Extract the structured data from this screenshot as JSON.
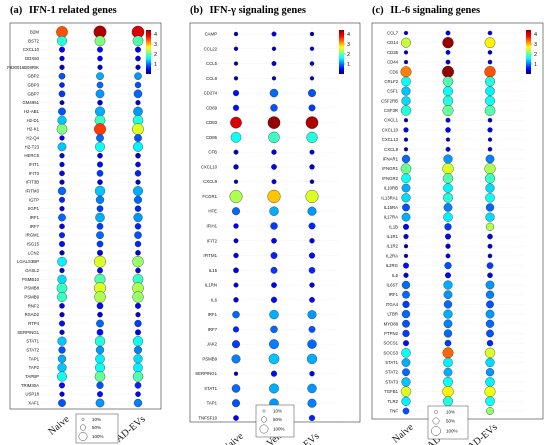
{
  "chart_data": [
    {
      "type": "scatter",
      "panel_label": "(a)",
      "title": "IFN-1 related genes",
      "x_categories": [
        "Naive",
        "AD-Veh",
        "AD-EVs"
      ],
      "colorbar_ticks": [
        "4",
        "3",
        "2",
        "1"
      ],
      "size_legend": [
        "10%",
        "50%",
        "100%"
      ],
      "genes": [
        "B2M",
        "BST2",
        "CXCL10",
        "DDX60",
        "F830016B08RIK",
        "GBP2",
        "GBP3",
        "GBP7",
        "GM4951",
        "H2-AB1",
        "H2-D1",
        "H2-K1",
        "H2-Q4",
        "H2-T23",
        "HERC6",
        "IFIT1",
        "IFIT3",
        "IFIT3B",
        "IFITM3",
        "IGTP",
        "IIGP1",
        "IRF1",
        "IRF7",
        "IRGM1",
        "ISG15",
        "LCN2",
        "LGALS3BP",
        "OASL2",
        "PSMB10",
        "PSMB8",
        "PSMB9",
        "RNF2",
        "RSAD2",
        "RTP4",
        "SERPING1",
        "STAT1",
        "STAT2",
        "TAP1",
        "TAP2",
        "TAPBP",
        "TRIM30A",
        "USP18",
        "XAF1"
      ],
      "size": [
        [
          0.8,
          1.0,
          0.95
        ],
        [
          0.55,
          0.65,
          0.65
        ],
        [
          0.15,
          0.15,
          0.15
        ],
        [
          0.1,
          0.12,
          0.12
        ],
        [
          0.1,
          0.1,
          0.1
        ],
        [
          0.2,
          0.3,
          0.28
        ],
        [
          0.12,
          0.2,
          0.18
        ],
        [
          0.2,
          0.4,
          0.38
        ],
        [
          0.08,
          0.12,
          0.1
        ],
        [
          0.3,
          0.55,
          0.5
        ],
        [
          0.45,
          0.65,
          0.62
        ],
        [
          0.65,
          0.85,
          0.82
        ],
        [
          0.1,
          0.3,
          0.3
        ],
        [
          0.4,
          0.55,
          0.55
        ],
        [
          0.1,
          0.12,
          0.12
        ],
        [
          0.1,
          0.15,
          0.12
        ],
        [
          0.12,
          0.2,
          0.18
        ],
        [
          0.1,
          0.12,
          0.1
        ],
        [
          0.35,
          0.6,
          0.55
        ],
        [
          0.15,
          0.35,
          0.32
        ],
        [
          0.1,
          0.2,
          0.18
        ],
        [
          0.3,
          0.5,
          0.45
        ],
        [
          0.12,
          0.2,
          0.18
        ],
        [
          0.15,
          0.3,
          0.28
        ],
        [
          0.15,
          0.2,
          0.18
        ],
        [
          0.1,
          0.15,
          0.12
        ],
        [
          0.5,
          0.85,
          0.75
        ],
        [
          0.1,
          0.15,
          0.12
        ],
        [
          0.45,
          0.7,
          0.65
        ],
        [
          0.65,
          0.85,
          0.8
        ],
        [
          0.55,
          0.8,
          0.75
        ],
        [
          0.12,
          0.2,
          0.15
        ],
        [
          0.1,
          0.12,
          0.1
        ],
        [
          0.15,
          0.3,
          0.25
        ],
        [
          0.1,
          0.2,
          0.15
        ],
        [
          0.45,
          0.6,
          0.58
        ],
        [
          0.25,
          0.35,
          0.32
        ],
        [
          0.35,
          0.5,
          0.45
        ],
        [
          0.45,
          0.55,
          0.5
        ],
        [
          0.55,
          0.65,
          0.62
        ],
        [
          0.15,
          0.25,
          0.2
        ],
        [
          0.1,
          0.15,
          0.12
        ],
        [
          0.3,
          0.4,
          0.35
        ]
      ],
      "value": [
        [
          3.5,
          4.2,
          4.0
        ],
        [
          1.8,
          2.2,
          2.0
        ],
        [
          0.5,
          0.6,
          0.5
        ],
        [
          0.4,
          0.5,
          0.4
        ],
        [
          0.3,
          0.35,
          0.3
        ],
        [
          0.9,
          1.3,
          1.2
        ],
        [
          0.7,
          1.0,
          0.9
        ],
        [
          0.8,
          1.2,
          1.0
        ],
        [
          0.3,
          0.4,
          0.3
        ],
        [
          0.9,
          1.3,
          1.2
        ],
        [
          1.4,
          1.9,
          1.8
        ],
        [
          2.2,
          3.6,
          2.6
        ],
        [
          0.5,
          1.0,
          0.9
        ],
        [
          1.4,
          1.7,
          1.6
        ],
        [
          0.3,
          0.4,
          0.3
        ],
        [
          0.4,
          0.6,
          0.5
        ],
        [
          0.5,
          0.8,
          0.7
        ],
        [
          0.3,
          0.4,
          0.3
        ],
        [
          1.0,
          1.4,
          1.3
        ],
        [
          0.7,
          1.1,
          1.0
        ],
        [
          0.4,
          0.8,
          0.7
        ],
        [
          1.0,
          1.3,
          1.2
        ],
        [
          0.5,
          0.8,
          0.7
        ],
        [
          0.7,
          1.0,
          0.9
        ],
        [
          0.6,
          0.8,
          0.7
        ],
        [
          0.3,
          0.5,
          0.4
        ],
        [
          1.6,
          2.6,
          2.3
        ],
        [
          0.4,
          0.6,
          0.5
        ],
        [
          1.5,
          2.0,
          1.9
        ],
        [
          1.9,
          2.6,
          2.4
        ],
        [
          1.9,
          2.4,
          2.3
        ],
        [
          0.4,
          0.6,
          0.5
        ],
        [
          0.3,
          0.4,
          0.3
        ],
        [
          0.6,
          1.0,
          0.8
        ],
        [
          0.3,
          0.6,
          0.5
        ],
        [
          1.4,
          1.8,
          1.7
        ],
        [
          0.9,
          1.2,
          1.1
        ],
        [
          1.3,
          1.6,
          1.5
        ],
        [
          1.4,
          1.7,
          1.6
        ],
        [
          1.7,
          2.1,
          2.0
        ],
        [
          0.6,
          0.9,
          0.7
        ],
        [
          0.4,
          0.6,
          0.5
        ],
        [
          0.9,
          1.2,
          1.1
        ]
      ],
      "vmin": 0,
      "vmax": 4.4
    },
    {
      "type": "scatter",
      "panel_label": "(b)",
      "title": "IFN-γ signaling genes",
      "x_categories": [
        "Naive",
        "AD-Veh",
        "AD-EVs"
      ],
      "colorbar_ticks": [
        "4",
        "3",
        "2",
        "1"
      ],
      "size_legend": [
        "10%",
        "50%",
        "100%"
      ],
      "genes": [
        "CAMP",
        "CCL22",
        "CCL5",
        "CCL8",
        "CD274",
        "CD69",
        "CD83",
        "CD86",
        "CFB",
        "CXCL10",
        "CXCL9",
        "FCGR1",
        "HFE",
        "IFIH1",
        "IFIT2",
        "IFITM1",
        "IL15",
        "IL1RN",
        "IL6",
        "IRF1",
        "IRF7",
        "JAK2",
        "PSMB9",
        "SERPING1",
        "STAT1",
        "TAP1",
        "TNFSF10"
      ],
      "size": [
        [
          0.05,
          0.08,
          0.05
        ],
        [
          0.05,
          0.05,
          0.05
        ],
        [
          0.05,
          0.08,
          0.06
        ],
        [
          0.05,
          0.05,
          0.05
        ],
        [
          0.15,
          0.35,
          0.3
        ],
        [
          0.15,
          0.25,
          0.2
        ],
        [
          0.75,
          0.9,
          0.9
        ],
        [
          0.6,
          0.7,
          0.68
        ],
        [
          0.08,
          0.1,
          0.08
        ],
        [
          0.1,
          0.12,
          0.1
        ],
        [
          0.05,
          0.08,
          0.06
        ],
        [
          0.95,
          1.0,
          0.98
        ],
        [
          0.3,
          0.45,
          0.4
        ],
        [
          0.1,
          0.25,
          0.2
        ],
        [
          0.08,
          0.12,
          0.1
        ],
        [
          0.1,
          0.2,
          0.15
        ],
        [
          0.12,
          0.2,
          0.18
        ],
        [
          0.08,
          0.12,
          0.1
        ],
        [
          0.1,
          0.15,
          0.12
        ],
        [
          0.25,
          0.45,
          0.4
        ],
        [
          0.15,
          0.25,
          0.2
        ],
        [
          0.3,
          0.5,
          0.45
        ],
        [
          0.4,
          0.6,
          0.55
        ],
        [
          0.05,
          0.15,
          0.1
        ],
        [
          0.35,
          0.5,
          0.45
        ],
        [
          0.3,
          0.45,
          0.4
        ],
        [
          0.12,
          0.2,
          0.15
        ]
      ],
      "value": [
        [
          0.3,
          0.4,
          0.3
        ],
        [
          0.3,
          0.3,
          0.3
        ],
        [
          0.3,
          0.4,
          0.35
        ],
        [
          0.3,
          0.3,
          0.3
        ],
        [
          0.6,
          1.0,
          0.9
        ],
        [
          0.6,
          0.9,
          0.8
        ],
        [
          4.0,
          4.3,
          4.2
        ],
        [
          1.7,
          1.9,
          1.8
        ],
        [
          0.3,
          0.4,
          0.3
        ],
        [
          0.4,
          0.5,
          0.4
        ],
        [
          0.3,
          0.4,
          0.3
        ],
        [
          2.4,
          3.0,
          2.6
        ],
        [
          1.0,
          1.3,
          1.2
        ],
        [
          0.5,
          0.8,
          0.7
        ],
        [
          0.4,
          0.5,
          0.45
        ],
        [
          0.5,
          0.7,
          0.6
        ],
        [
          0.5,
          0.8,
          0.7
        ],
        [
          0.4,
          0.5,
          0.45
        ],
        [
          0.4,
          0.6,
          0.5
        ],
        [
          1.0,
          1.3,
          1.2
        ],
        [
          0.7,
          1.0,
          0.9
        ],
        [
          0.8,
          1.1,
          1.0
        ],
        [
          1.1,
          1.4,
          1.3
        ],
        [
          0.3,
          0.6,
          0.5
        ],
        [
          1.0,
          1.3,
          1.2
        ],
        [
          0.9,
          1.2,
          1.1
        ],
        [
          0.5,
          0.8,
          0.7
        ]
      ],
      "vmin": 0,
      "vmax": 4.4
    },
    {
      "type": "scatter",
      "panel_label": "(c)",
      "title": "IL-6 signaling genes",
      "x_categories": [
        "Naive",
        "AD-Veh",
        "AD-EVs"
      ],
      "colorbar_ticks": [
        "4",
        "3",
        "2",
        "1"
      ],
      "size_legend": [
        "10%",
        "50%",
        "100%"
      ],
      "genes": [
        "CCL7",
        "CD14",
        "CD36",
        "CD44",
        "CD6",
        "CRLF2",
        "CSF1",
        "CSF2RB",
        "CSF3R",
        "CXCL1",
        "CXCL10",
        "CXCL13",
        "CXCL9",
        "IFNAR1",
        "IFNGR1",
        "IFNGR2",
        "IL10RB",
        "IL13RA1",
        "IL15RA",
        "IL17RA",
        "IL1B",
        "IL1R1",
        "IL1R2",
        "IL2RA",
        "IL2RG",
        "IL6",
        "IL6ST",
        "IRF1",
        "ITGA4",
        "LTBR",
        "MYD88",
        "PTPN2",
        "SOCS1",
        "SOCS3",
        "STAT1",
        "STAT2",
        "STAT3",
        "TGFB1",
        "TLR2",
        "TNF"
      ],
      "size": [
        [
          0.05,
          0.08,
          0.06
        ],
        [
          0.55,
          0.75,
          0.65
        ],
        [
          0.05,
          0.08,
          0.06
        ],
        [
          0.05,
          0.08,
          0.06
        ],
        [
          0.7,
          0.85,
          0.75
        ],
        [
          0.5,
          0.6,
          0.55
        ],
        [
          0.45,
          0.55,
          0.5
        ],
        [
          0.45,
          0.6,
          0.55
        ],
        [
          0.6,
          0.7,
          0.65
        ],
        [
          0.05,
          0.08,
          0.06
        ],
        [
          0.1,
          0.12,
          0.1
        ],
        [
          0.05,
          0.05,
          0.05
        ],
        [
          0.05,
          0.08,
          0.06
        ],
        [
          0.35,
          0.45,
          0.4
        ],
        [
          0.65,
          0.75,
          0.72
        ],
        [
          0.5,
          0.6,
          0.58
        ],
        [
          0.4,
          0.5,
          0.45
        ],
        [
          0.45,
          0.55,
          0.5
        ],
        [
          0.3,
          0.4,
          0.35
        ],
        [
          0.4,
          0.5,
          0.45
        ],
        [
          0.15,
          0.25,
          0.35
        ],
        [
          0.1,
          0.15,
          0.12
        ],
        [
          0.05,
          0.1,
          0.08
        ],
        [
          0.05,
          0.08,
          0.06
        ],
        [
          0.15,
          0.25,
          0.2
        ],
        [
          0.1,
          0.15,
          0.12
        ],
        [
          0.35,
          0.45,
          0.4
        ],
        [
          0.3,
          0.4,
          0.35
        ],
        [
          0.25,
          0.35,
          0.3
        ],
        [
          0.35,
          0.45,
          0.4
        ],
        [
          0.3,
          0.4,
          0.35
        ],
        [
          0.25,
          0.35,
          0.3
        ],
        [
          0.15,
          0.2,
          0.18
        ],
        [
          0.5,
          0.7,
          0.6
        ],
        [
          0.4,
          0.5,
          0.45
        ],
        [
          0.3,
          0.4,
          0.35
        ],
        [
          0.45,
          0.55,
          0.5
        ],
        [
          0.6,
          0.75,
          0.7
        ],
        [
          0.45,
          0.55,
          0.5
        ],
        [
          0.2,
          0.35,
          0.3
        ]
      ],
      "value": [
        [
          0.3,
          0.4,
          0.35
        ],
        [
          2.5,
          4.3,
          2.8
        ],
        [
          0.3,
          0.4,
          0.35
        ],
        [
          0.3,
          0.4,
          0.35
        ],
        [
          3.3,
          4.3,
          3.5
        ],
        [
          1.7,
          2.0,
          1.8
        ],
        [
          1.4,
          1.7,
          1.6
        ],
        [
          1.5,
          1.8,
          1.7
        ],
        [
          1.8,
          2.1,
          2.0
        ],
        [
          0.3,
          0.4,
          0.3
        ],
        [
          0.4,
          0.5,
          0.4
        ],
        [
          0.3,
          0.3,
          0.3
        ],
        [
          0.3,
          0.4,
          0.35
        ],
        [
          1.0,
          1.2,
          1.1
        ],
        [
          2.1,
          2.6,
          2.4
        ],
        [
          1.7,
          2.0,
          1.9
        ],
        [
          1.3,
          1.6,
          1.5
        ],
        [
          1.5,
          1.8,
          1.7
        ],
        [
          0.9,
          1.1,
          1.0
        ],
        [
          1.3,
          1.6,
          1.5
        ],
        [
          0.5,
          0.8,
          2.4
        ],
        [
          0.4,
          0.5,
          0.45
        ],
        [
          0.3,
          0.4,
          0.35
        ],
        [
          0.3,
          0.4,
          0.3
        ],
        [
          0.6,
          0.9,
          0.8
        ],
        [
          0.4,
          0.5,
          0.45
        ],
        [
          1.0,
          1.3,
          1.2
        ],
        [
          1.0,
          1.2,
          1.1
        ],
        [
          0.8,
          1.0,
          0.9
        ],
        [
          1.0,
          1.3,
          1.2
        ],
        [
          0.9,
          1.1,
          1.0
        ],
        [
          0.8,
          1.0,
          0.9
        ],
        [
          0.6,
          0.8,
          0.7
        ],
        [
          1.7,
          3.4,
          2.6
        ],
        [
          1.3,
          1.6,
          1.5
        ],
        [
          1.0,
          1.3,
          1.2
        ],
        [
          1.4,
          1.7,
          1.6
        ],
        [
          2.6,
          2.8,
          2.7
        ],
        [
          1.6,
          1.8,
          1.7
        ],
        [
          0.9,
          1.3,
          2.3
        ]
      ],
      "vmin": 0,
      "vmax": 4.4
    }
  ]
}
